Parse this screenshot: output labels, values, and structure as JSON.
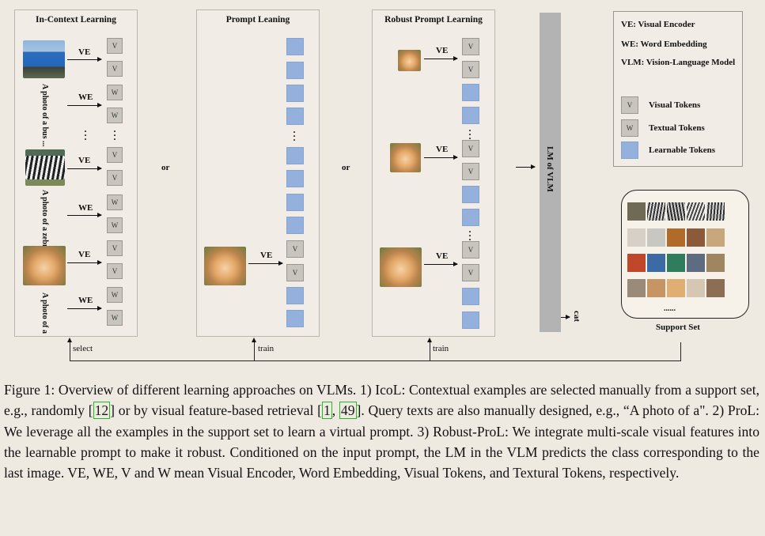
{
  "panels": {
    "icl_title": "In-Context Learning",
    "prol_title": "Prompt Leaning",
    "robust_title": "Robust Prompt Learning"
  },
  "labels": {
    "ve": "VE",
    "we": "WE",
    "or": "or",
    "v": "V",
    "w": "W"
  },
  "queries": [
    "A photo of a bus ...",
    "A photo of a zebra",
    "A photo of a"
  ],
  "lm": "LM of VLM",
  "output": "cat",
  "legend": {
    "ve": "VE: Visual Encoder",
    "we": "WE: Word Embedding",
    "vlm": "VLM: Vision-Language Model",
    "visual_tokens": "Visual Tokens",
    "textual_tokens": "Textual Tokens",
    "learnable_tokens": "Learnable Tokens"
  },
  "support": {
    "dots": "......",
    "label": "Support Set"
  },
  "connectors": {
    "select": "select",
    "train1": "train",
    "train2": "train"
  },
  "caption": {
    "p1": "Figure 1: Overview of different learning approaches on VLMs. 1) IcoL: Contextual examples are selected manually from a support set, e.g., randomly ",
    "ref12": "12",
    "p2": "] or by visual feature-based retrieval [",
    "ref1": "1",
    "p3": ", ",
    "ref49": "49",
    "p4": "]. Query texts are also manually designed, e.g., “A photo of a\". 2) ProL: We leverage all the examples in the support set to learn a virtual prompt. 3) Robust-ProL: We integrate multi-scale visual features into the learnable prompt to make it robust. Conditioned on the input prompt, the LM in the VLM predicts the class corresponding to the last image. VE, WE, V and W mean Visual Encoder, Word Embedding, Visual Tokens, and Textural Tokens, respectively."
  }
}
